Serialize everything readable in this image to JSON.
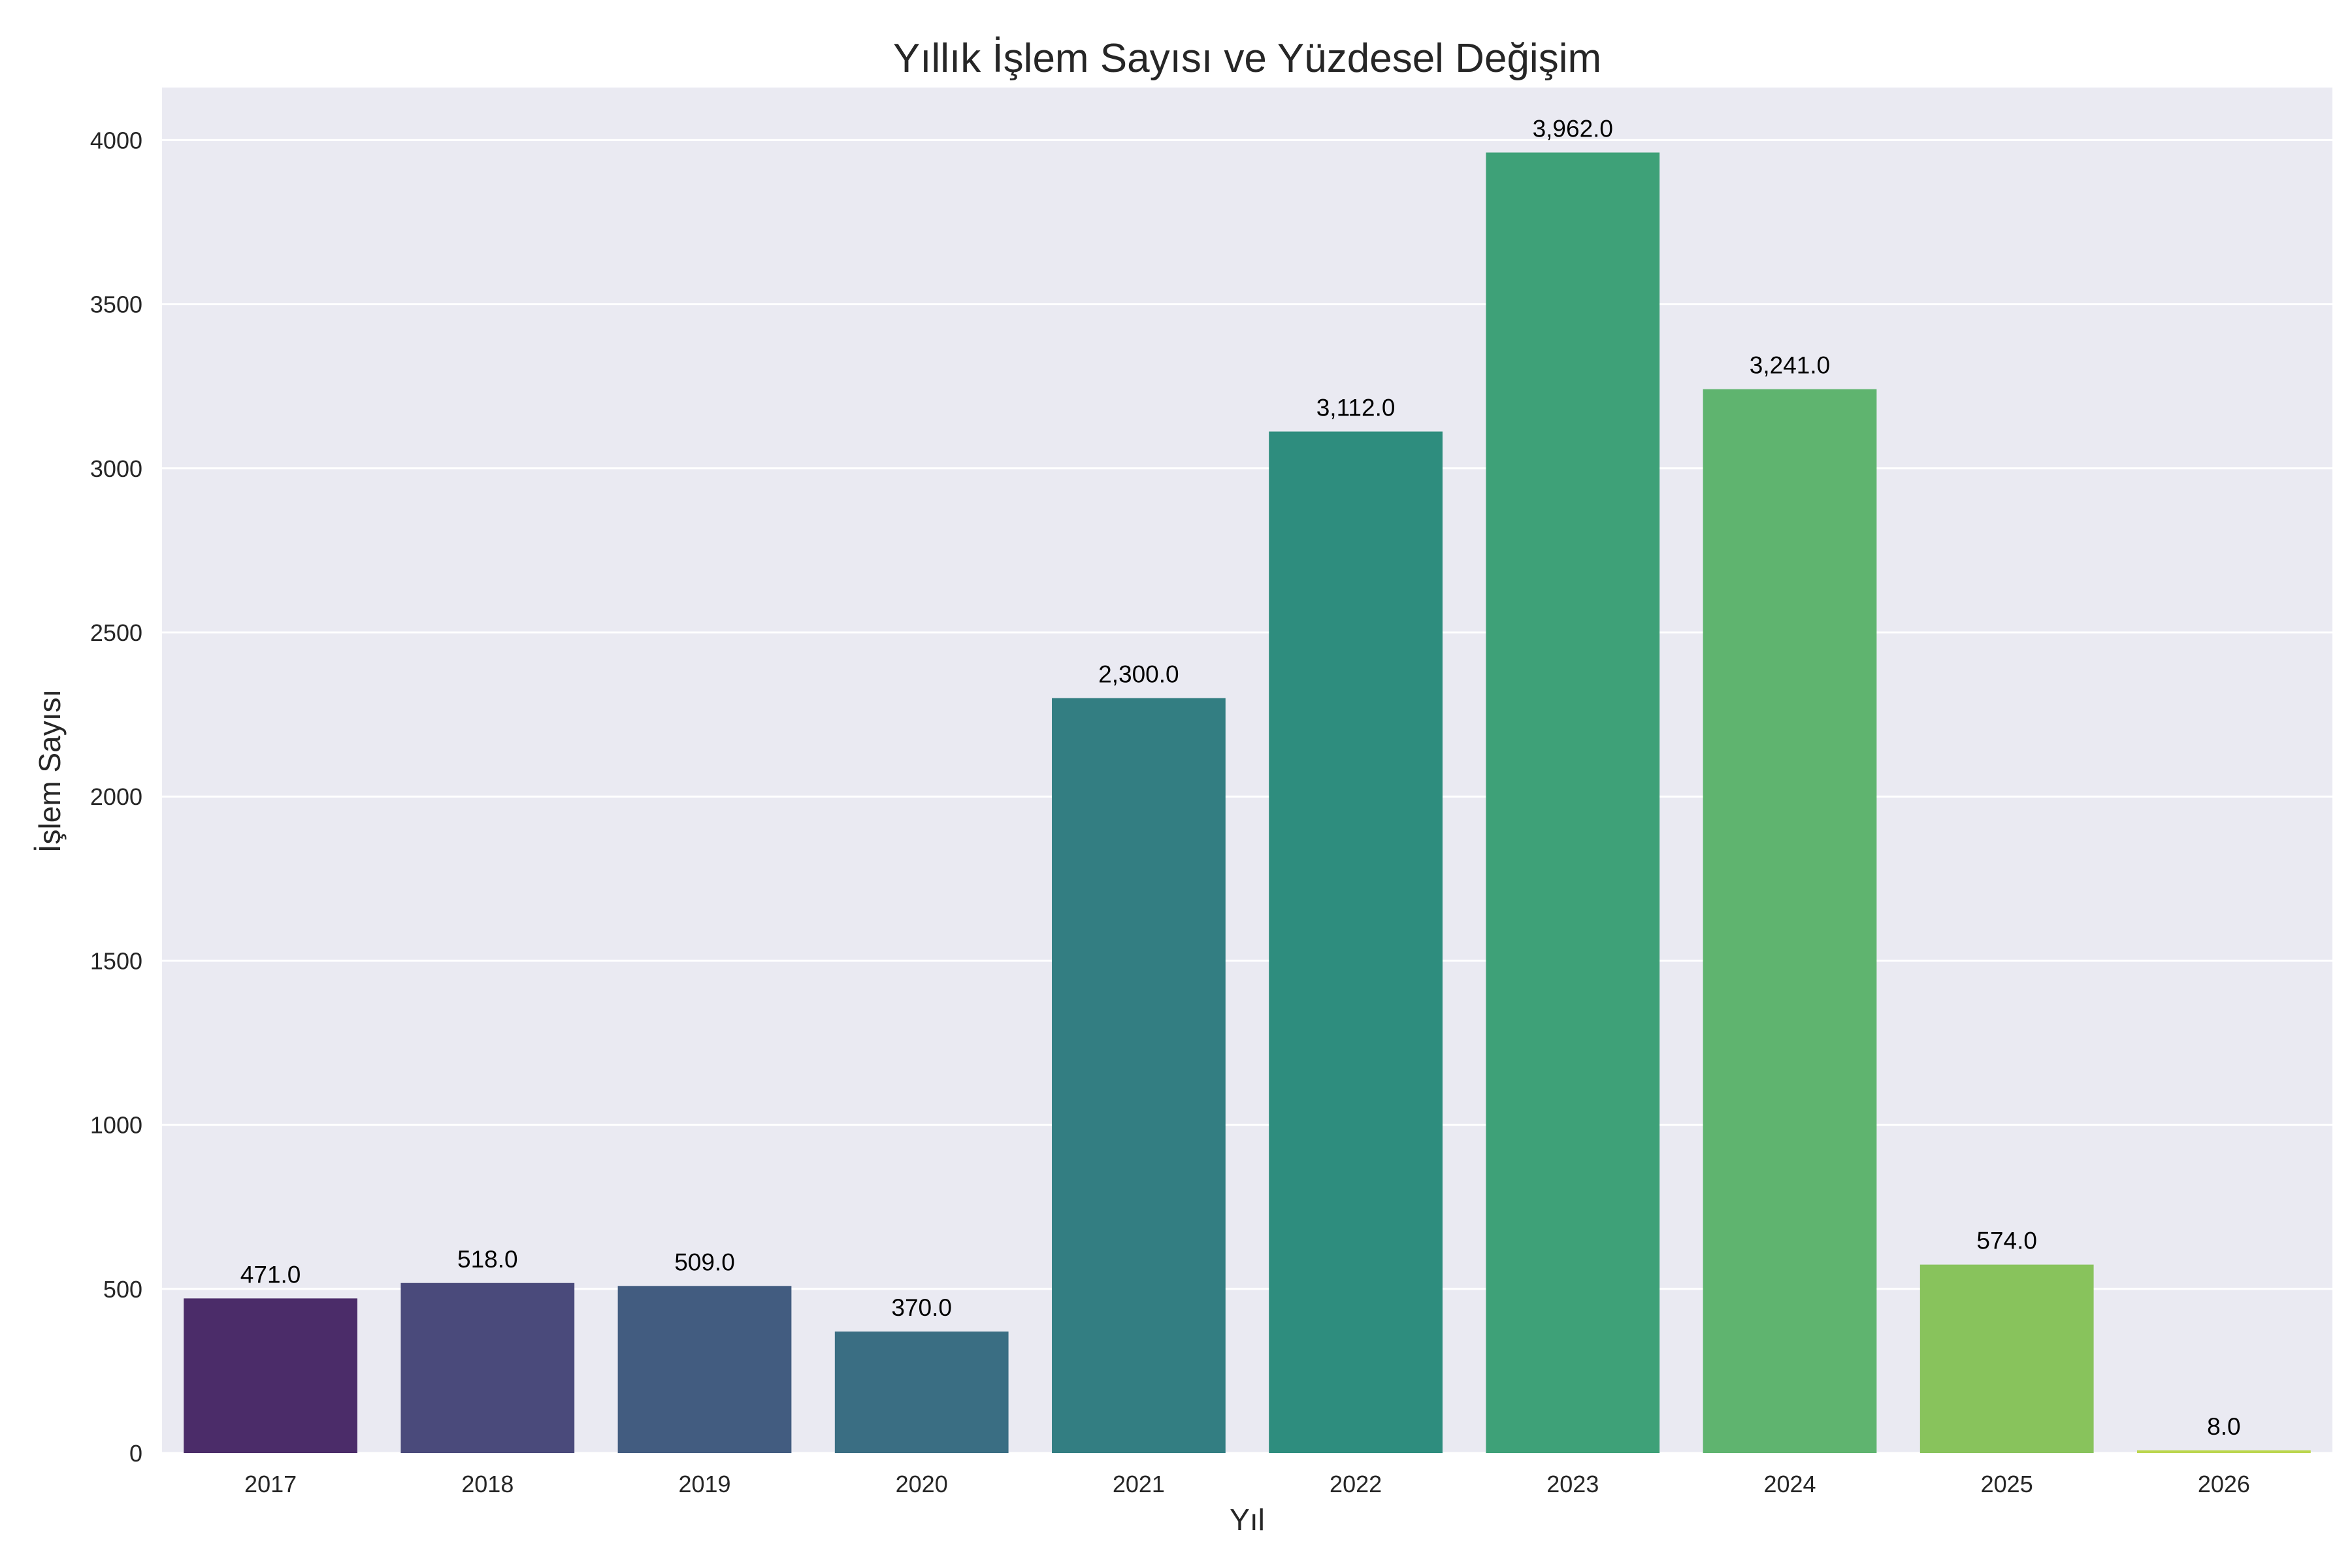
{
  "chart_data": {
    "type": "bar",
    "title": "Yıllık İşlem Sayısı ve Yüzdesel Değişim",
    "xlabel": "Yıl",
    "ylabel": "İşlem Sayısı",
    "categories": [
      "2017",
      "2018",
      "2019",
      "2020",
      "2021",
      "2022",
      "2023",
      "2024",
      "2025",
      "2026"
    ],
    "values": [
      471,
      518,
      509,
      370,
      2300,
      3112,
      3962,
      3241,
      574,
      8
    ],
    "data_labels": [
      "471.0",
      "518.0",
      "509.0",
      "370.0",
      "2,300.0",
      "3,112.0",
      "3,962.0",
      "3,241.0",
      "574.0",
      "8.0"
    ],
    "bar_colors": [
      "#4b2c69",
      "#4a4a7b",
      "#425c80",
      "#3a6e83",
      "#337e82",
      "#2e8d7e",
      "#3ea178",
      "#5fb46f",
      "#88c35c",
      "#bbd64e"
    ],
    "ylim": [
      0,
      4160
    ],
    "yticks": [
      0,
      500,
      1000,
      1500,
      2000,
      2500,
      3000,
      3500,
      4000
    ],
    "ytick_labels": [
      "0",
      "500",
      "1000",
      "1500",
      "2000",
      "2500",
      "3000",
      "3500",
      "4000"
    ],
    "grid": true,
    "plot_background": "#eaeaf2",
    "grid_color": "#ffffff"
  }
}
